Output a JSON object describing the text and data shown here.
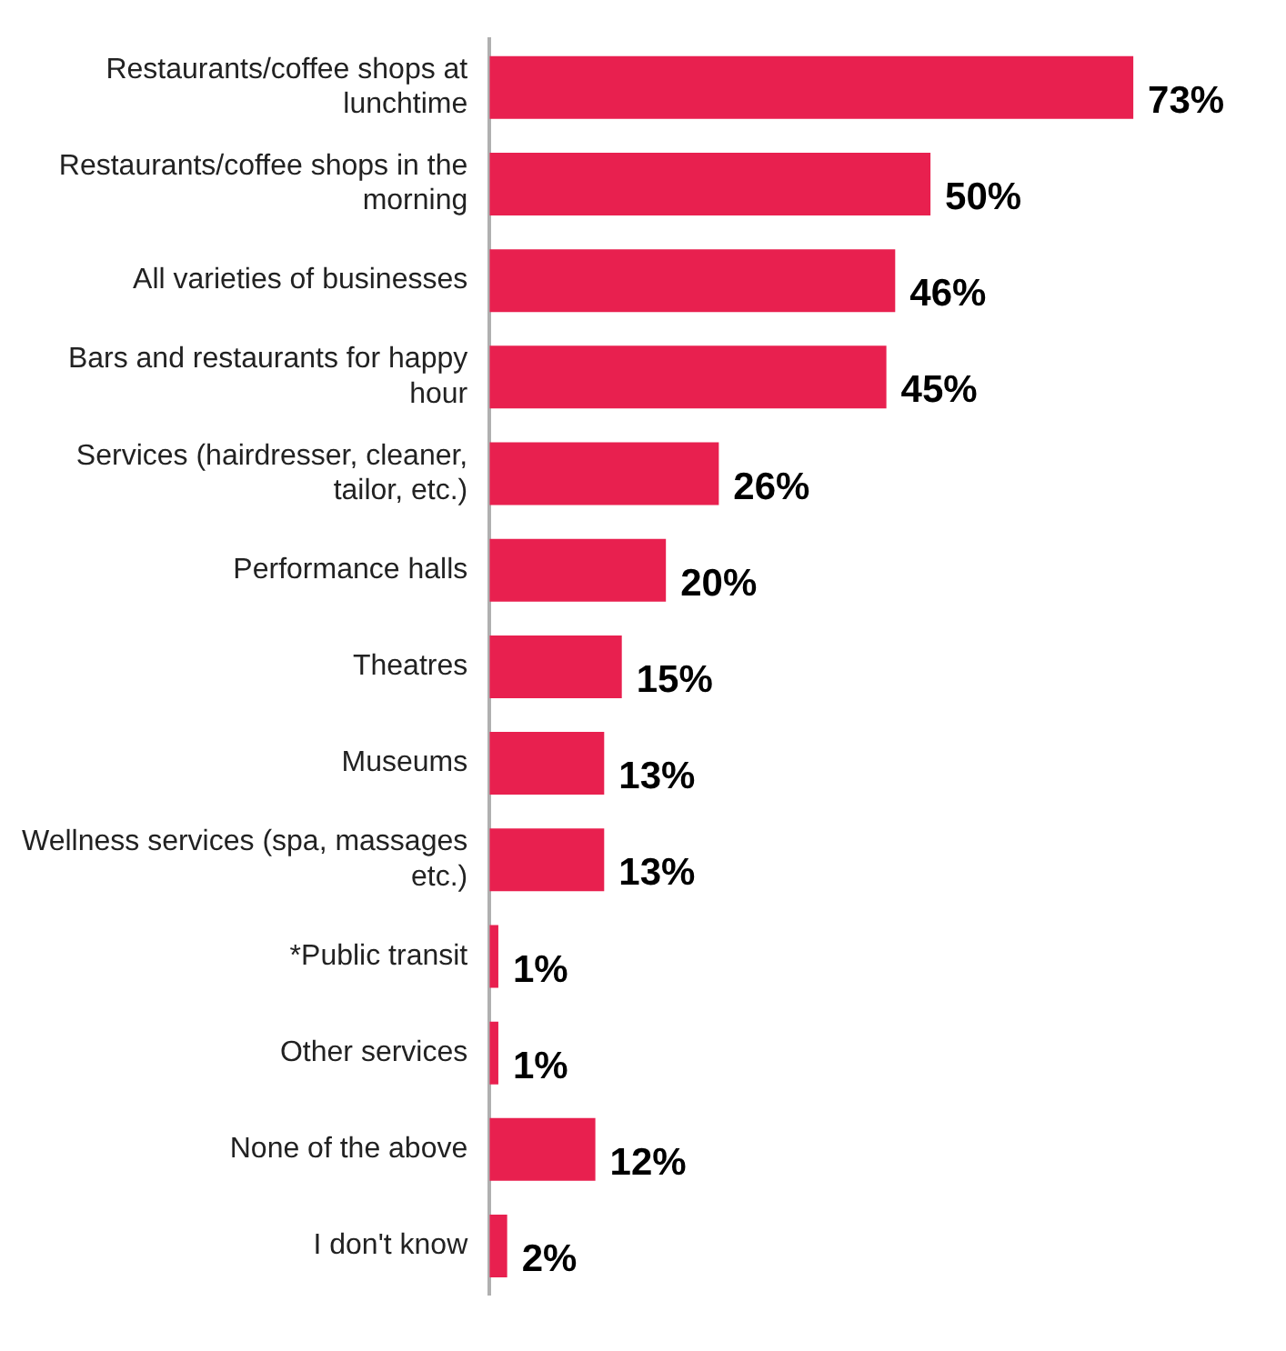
{
  "chart_data": {
    "type": "bar",
    "orientation": "horizontal",
    "categories": [
      "Restaurants/coffee shops at lunchtime",
      "Restaurants/coffee shops in the morning",
      "All varieties of businesses",
      "Bars and restaurants for happy hour",
      "Services (hairdresser, cleaner, tailor, etc.)",
      "Performance halls",
      "Theatres",
      "Museums",
      "Wellness services (spa, massages etc.)",
      "*Public transit",
      "Other services",
      "None of the above",
      "I don't know"
    ],
    "values": [
      73,
      50,
      46,
      45,
      26,
      20,
      15,
      13,
      13,
      1,
      1,
      12,
      2
    ],
    "color": "#e8204f",
    "data_labels": true,
    "value_labels": [
      "73%",
      "50%",
      "46%",
      "45%",
      "26%",
      "20%",
      "15%",
      "13%",
      "13%",
      "1%",
      "1%",
      "12%",
      "2%"
    ],
    "legend": false
  }
}
